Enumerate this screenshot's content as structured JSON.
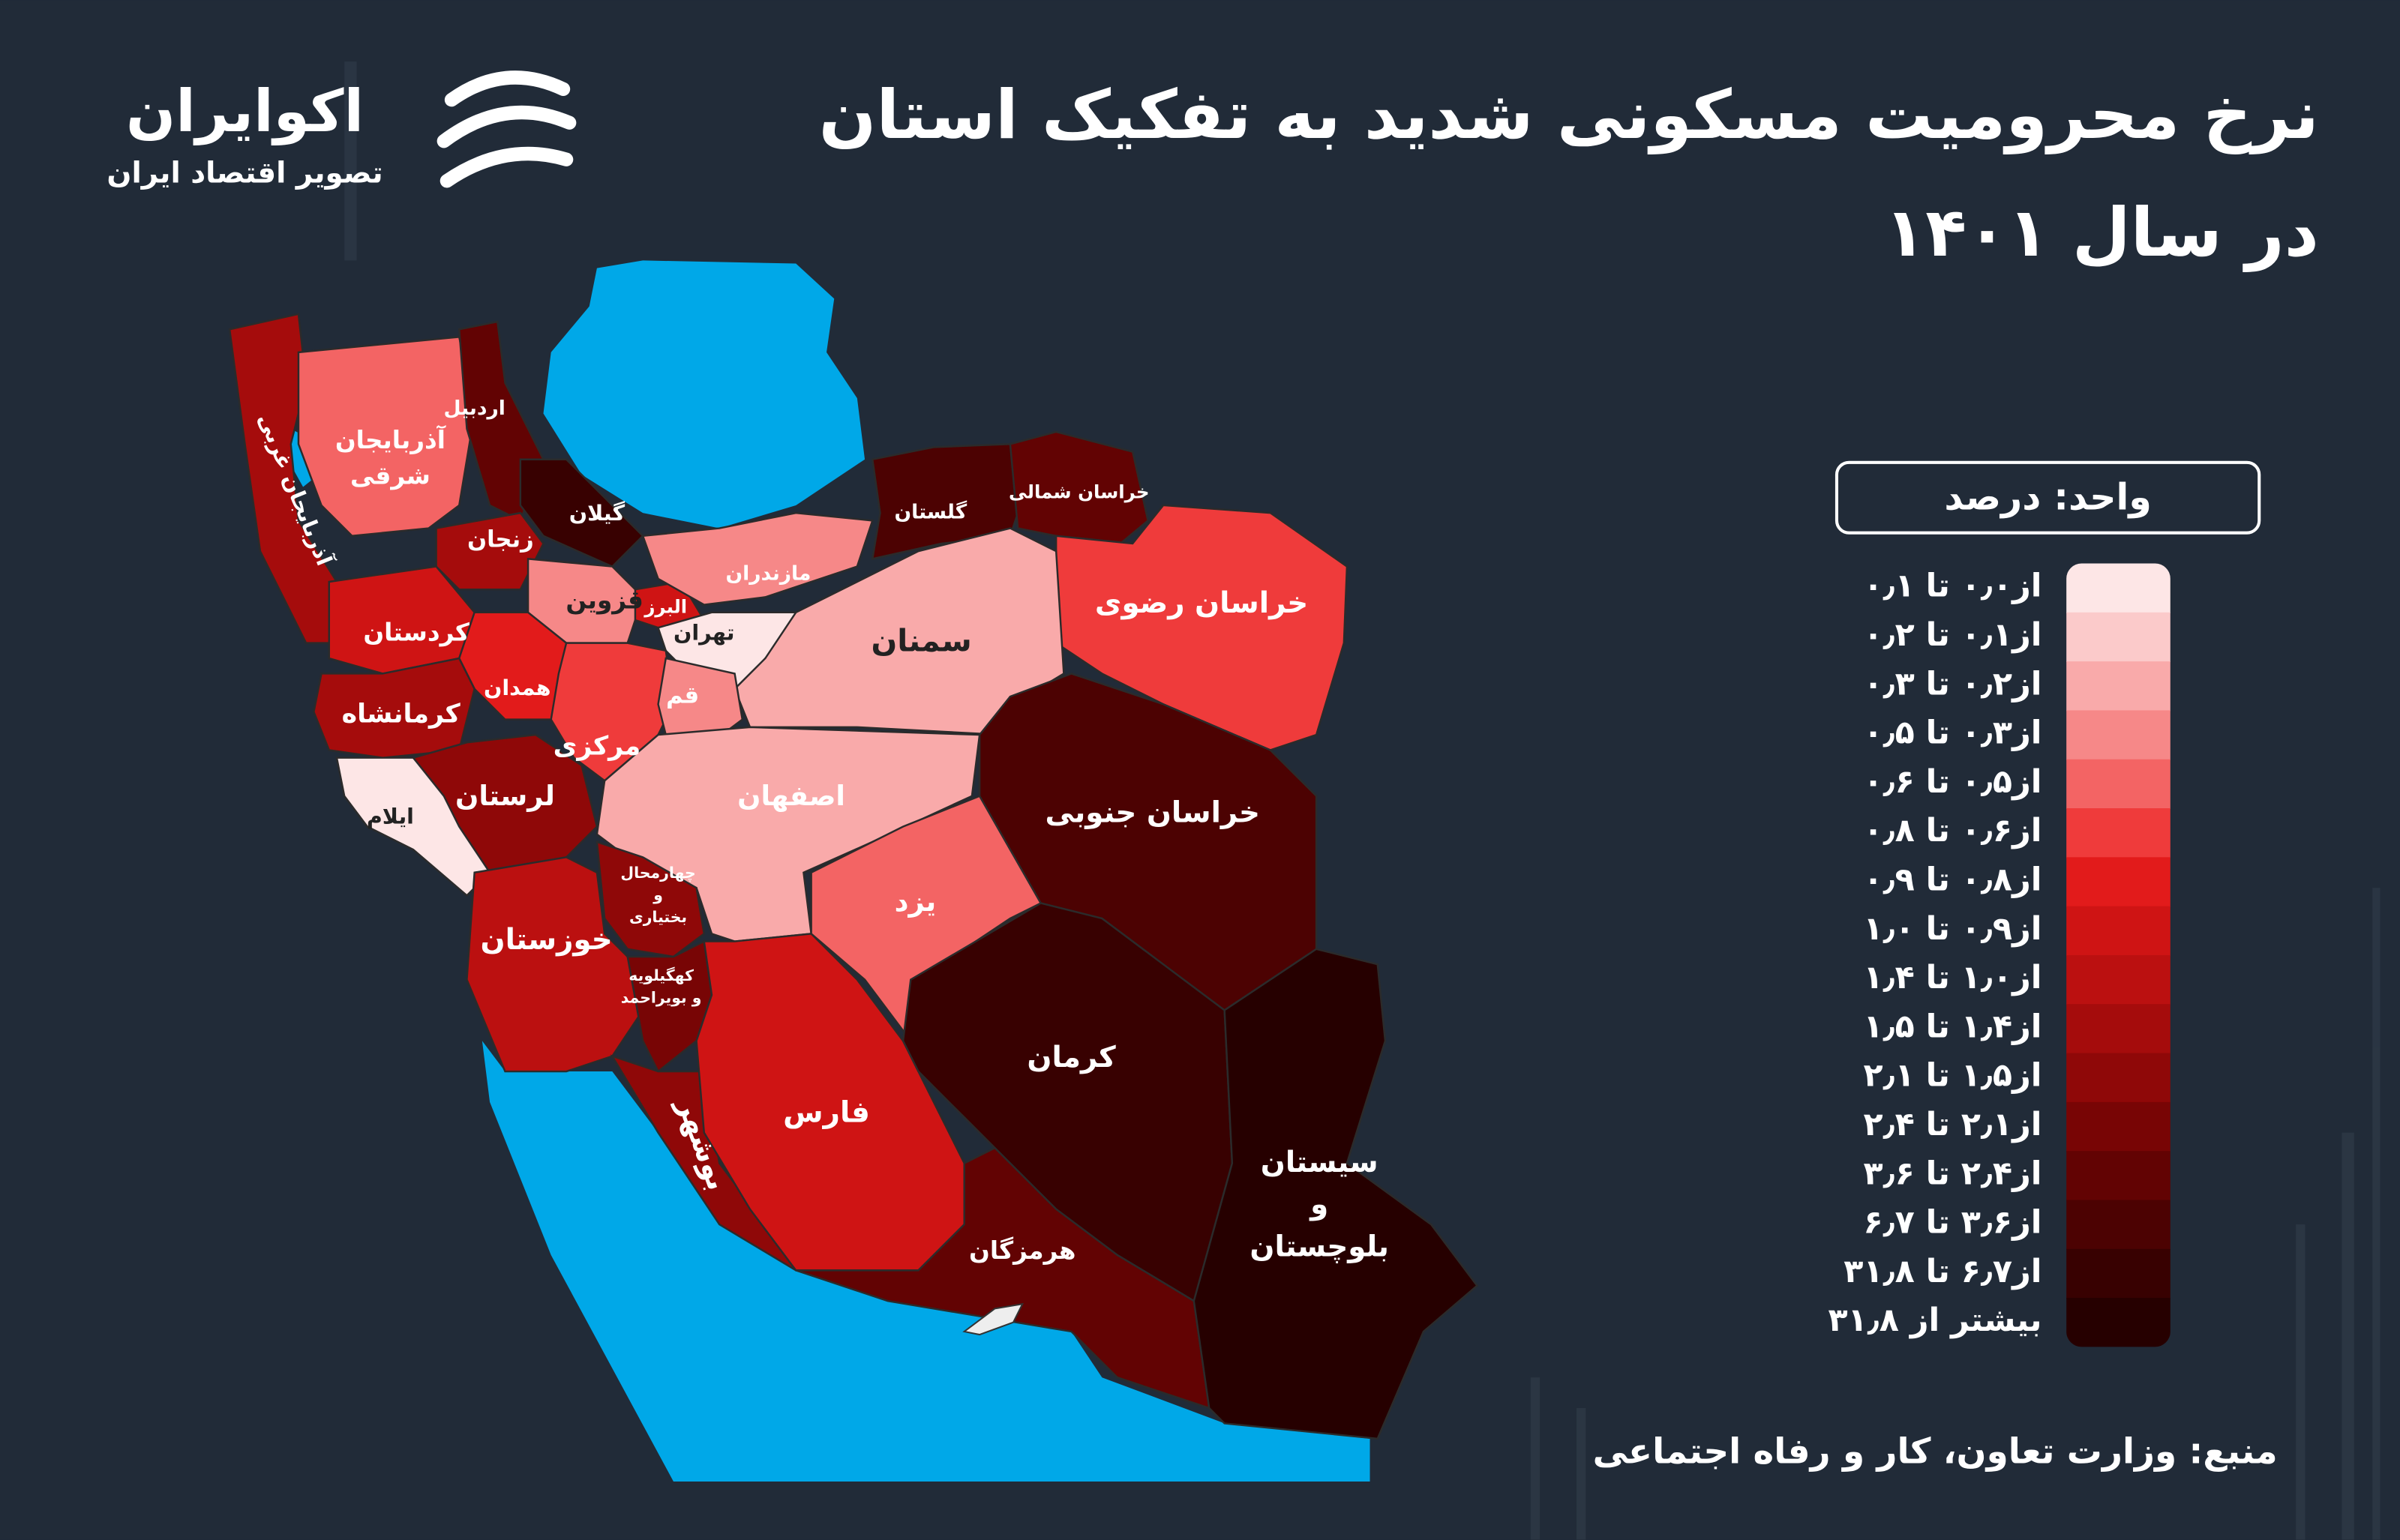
{
  "header": {
    "title_line1": "نرخ محرومیت مسکونی شدید به تفکیک استان",
    "title_line2": "در سال ۱۴۰۱"
  },
  "logo": {
    "name": "اکوایران",
    "tagline": "تصویر اقتصاد ایران"
  },
  "legend": {
    "unit": "واحد: درصد",
    "items": [
      {
        "label": "از۰٫۰ تا ۰٫۱",
        "color": "#fde6e6"
      },
      {
        "label": "از۰٫۱ تا ۰٫۲",
        "color": "#fbcaca"
      },
      {
        "label": "از۰٫۲ تا ۰٫۳",
        "color": "#f9aaaa"
      },
      {
        "label": "از۰٫۳ تا ۰٫۵",
        "color": "#f68888"
      },
      {
        "label": "از۰٫۵ تا ۰٫۶",
        "color": "#f36464"
      },
      {
        "label": "از۰٫۶ تا ۰٫۸",
        "color": "#ef3b3b"
      },
      {
        "label": "از۰٫۸ تا ۰٫۹",
        "color": "#e21b1b"
      },
      {
        "label": "از۰٫۹ تا ۱٫۰",
        "color": "#cf1414"
      },
      {
        "label": "از۱٫۰ تا ۱٫۴",
        "color": "#bb1010"
      },
      {
        "label": "از۱٫۴ تا ۱٫۵",
        "color": "#a50c0c"
      },
      {
        "label": "از۱٫۵ تا ۲٫۱",
        "color": "#8f0808"
      },
      {
        "label": "از۲٫۱ تا ۲٫۴",
        "color": "#780505"
      },
      {
        "label": "از۲٫۴ تا ۳٫۶",
        "color": "#620303"
      },
      {
        "label": "از۳٫۶ تا ۶٫۷",
        "color": "#4c0202"
      },
      {
        "label": "از۶٫۷ تا ۳۱٫۸",
        "color": "#380101"
      },
      {
        "label": "بیشتر از ۳۱٫۸",
        "color": "#260000"
      }
    ]
  },
  "provinces": [
    {
      "label": [
        "آذربایجان غربی"
      ],
      "color": "#a50c0c"
    },
    {
      "label": [
        "آذربایجان",
        "شرقی"
      ],
      "color": "#f36464"
    },
    {
      "label": [
        "اردبیل"
      ],
      "color": "#620303"
    },
    {
      "label": [
        "گیلان"
      ],
      "color": "#380101"
    },
    {
      "label": [
        "زنجان"
      ],
      "color": "#a50c0c"
    },
    {
      "label": [
        "کردستان"
      ],
      "color": "#cf1414"
    },
    {
      "label": [
        "قزوین"
      ],
      "color": "#f68888"
    },
    {
      "label": [
        "البرز"
      ],
      "color": "#cf1414"
    },
    {
      "label": [
        "مازندران"
      ],
      "color": "#f68888"
    },
    {
      "label": [
        "تهران"
      ],
      "color": "#fde6e6"
    },
    {
      "label": [
        "گلستان"
      ],
      "color": "#4c0202"
    },
    {
      "label": [
        "خراسان شمالی"
      ],
      "color": "#620303"
    },
    {
      "label": [
        "خراسان رضوی"
      ],
      "color": "#ef3b3b"
    },
    {
      "label": [
        "سمنان"
      ],
      "color": "#f9aaaa"
    },
    {
      "label": [
        "همدان"
      ],
      "color": "#e21b1b"
    },
    {
      "label": [
        "کرمانشاه"
      ],
      "color": "#a50c0c"
    },
    {
      "label": [
        "ایلام"
      ],
      "color": "#fde6e6"
    },
    {
      "label": [
        "لرستان"
      ],
      "color": "#8f0808"
    },
    {
      "label": [
        "مرکزی"
      ],
      "color": "#ef3b3b"
    },
    {
      "label": [
        "قم"
      ],
      "color": "#f68888"
    },
    {
      "label": [
        "اصفهان"
      ],
      "color": "#f9aaaa"
    },
    {
      "label": [
        "چهارمحال",
        "و",
        "بختیاری"
      ],
      "color": "#8f0808"
    },
    {
      "label": [
        "خوزستان"
      ],
      "color": "#bb1010"
    },
    {
      "label": [
        "کهگیلویه",
        "و بویراحمد"
      ],
      "color": "#780505"
    },
    {
      "label": [
        "بوشهر"
      ],
      "color": "#8f0808"
    },
    {
      "label": [
        "فارس"
      ],
      "color": "#cf1414"
    },
    {
      "label": [
        "یزد"
      ],
      "color": "#f36464"
    },
    {
      "label": [
        "خراسان جنوبی"
      ],
      "color": "#4c0202"
    },
    {
      "label": [
        "کرمان"
      ],
      "color": "#380101"
    },
    {
      "label": [
        "هرمزگان"
      ],
      "color": "#620303"
    },
    {
      "label": [
        "سیستان",
        "و",
        "بلوچستان"
      ],
      "color": "#260000"
    }
  ],
  "source": "منبع: وزارت تعاون، کار و رفاه اجتماعی"
}
